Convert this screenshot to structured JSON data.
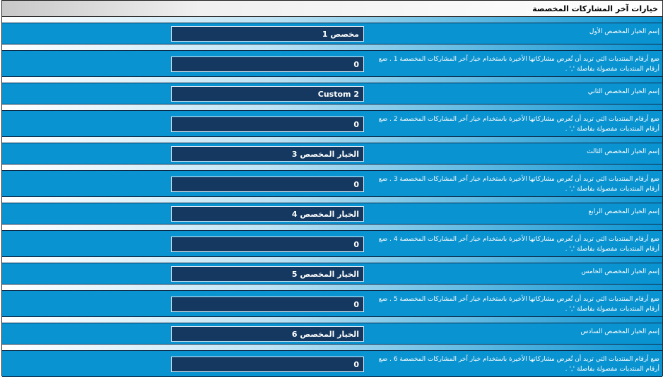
{
  "header": {
    "title": "خيارات آخر المشاركات المخصصة"
  },
  "options": [
    {
      "name_label": "إسم الخيار المخصص الأول",
      "name_value": "مخصص 1",
      "fids_label": "ضع أرقام المنتديات التي تريد أن تُعرض مشاركاتها الأخيرة باستخدام خيار آخر المشاركات المخصصة 1 . ضع أرقام المنتديات مفصولة بفاصلة ',' .",
      "fids_value": "0"
    },
    {
      "name_label": "إسم الخيار المخصص الثاني",
      "name_value": "Custom 2",
      "fids_label": "ضع أرقام المنتديات التي تريد أن تُعرض مشاركاتها الأخيرة باستخدام خيار آخر المشاركات المخصصة 2 . ضع أرقام المنتديات مفصولة بفاصلة ',' .",
      "fids_value": "0"
    },
    {
      "name_label": "إسم الخيار المخصص الثالث",
      "name_value": "الخيار المخصص 3",
      "fids_label": "ضع أرقام المنتديات التي تريد أن تُعرض مشاركاتها الأخيرة باستخدام خيار آخر المشاركات المخصصة 3 . ضع أرقام المنتديات مفصولة بفاصلة ',' .",
      "fids_value": "0"
    },
    {
      "name_label": "إسم الخيار المخصص الرابع",
      "name_value": "الخيار المخصص 4",
      "fids_label": "ضع أرقام المنتديات التي تريد أن تُعرض مشاركاتها الأخيرة باستخدام خيار آخر المشاركات المخصصة 4 . ضع أرقام المنتديات مفصولة بفاصلة ',' .",
      "fids_value": "0"
    },
    {
      "name_label": "إسم الخيار المخصص الخامس",
      "name_value": "الخيار المخصص 5",
      "fids_label": "ضع أرقام المنتديات التي تريد أن تُعرض مشاركاتها الأخيرة باستخدام خيار آخر المشاركات المخصصة 5 . ضع أرقام المنتديات مفصولة بفاصلة ',' .",
      "fids_value": "0"
    },
    {
      "name_label": "إسم الخيار المخصص السادس",
      "name_value": "الخيار المخصص 6",
      "fids_label": "ضع أرقام المنتديات التي تريد أن تُعرض مشاركاتها الأخيرة باستخدام خيار آخر المشاركات المخصصة 6 . ضع أرقام المنتديات مفصولة بفاصلة ',' .",
      "fids_value": "0"
    }
  ],
  "colors": {
    "row_bg": "#0a93d1",
    "field_bg": "#143860",
    "text": "#ffffff"
  }
}
